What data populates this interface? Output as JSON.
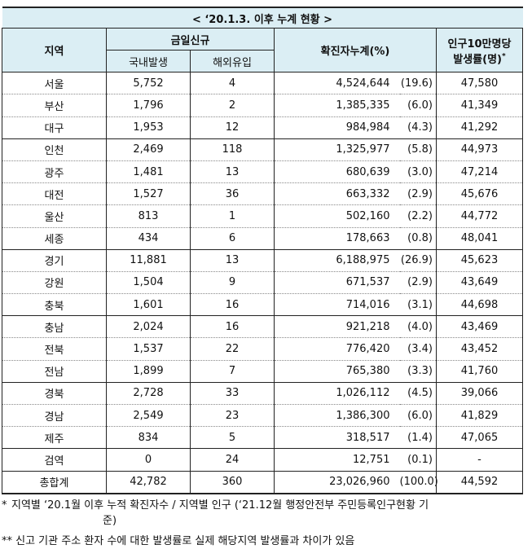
{
  "title": "< ‘20.1.3. 이후 누계 현황 >",
  "headers": {
    "region": "지역",
    "new_today": "금일신규",
    "domestic": "국내발생",
    "imported": "해외유입",
    "cumulative": "확진자누계(%)",
    "rate_line1": "인구10만명당",
    "rate_line2": "발생률(명)",
    "rate_mark": "*"
  },
  "rows": [
    {
      "region": "서울",
      "domestic": "5,752",
      "imported": "4",
      "cumulative": "4,524,644",
      "pct": "(19.6)",
      "rate": "47,580"
    },
    {
      "region": "부산",
      "domestic": "1,796",
      "imported": "2",
      "cumulative": "1,385,335",
      "pct": "(6.0)",
      "rate": "41,349"
    },
    {
      "region": "대구",
      "domestic": "1,953",
      "imported": "12",
      "cumulative": "984,984",
      "pct": "(4.3)",
      "rate": "41,292"
    },
    {
      "region": "인천",
      "domestic": "2,469",
      "imported": "118",
      "cumulative": "1,325,977",
      "pct": "(5.8)",
      "rate": "44,973"
    },
    {
      "region": "광주",
      "domestic": "1,481",
      "imported": "13",
      "cumulative": "680,639",
      "pct": "(3.0)",
      "rate": "47,214"
    },
    {
      "region": "대전",
      "domestic": "1,527",
      "imported": "36",
      "cumulative": "663,332",
      "pct": "(2.9)",
      "rate": "45,676"
    },
    {
      "region": "울산",
      "domestic": "813",
      "imported": "1",
      "cumulative": "502,160",
      "pct": "(2.2)",
      "rate": "44,772"
    },
    {
      "region": "세종",
      "domestic": "434",
      "imported": "6",
      "cumulative": "178,663",
      "pct": "(0.8)",
      "rate": "48,041"
    },
    {
      "region": "경기",
      "domestic": "11,881",
      "imported": "13",
      "cumulative": "6,188,975",
      "pct": "(26.9)",
      "rate": "45,623"
    },
    {
      "region": "강원",
      "domestic": "1,504",
      "imported": "9",
      "cumulative": "671,537",
      "pct": "(2.9)",
      "rate": "43,649"
    },
    {
      "region": "충북",
      "domestic": "1,601",
      "imported": "16",
      "cumulative": "714,016",
      "pct": "(3.1)",
      "rate": "44,698"
    },
    {
      "region": "충남",
      "domestic": "2,024",
      "imported": "16",
      "cumulative": "921,218",
      "pct": "(4.0)",
      "rate": "43,469"
    },
    {
      "region": "전북",
      "domestic": "1,537",
      "imported": "22",
      "cumulative": "776,420",
      "pct": "(3.4)",
      "rate": "43,452"
    },
    {
      "region": "전남",
      "domestic": "1,899",
      "imported": "7",
      "cumulative": "765,380",
      "pct": "(3.3)",
      "rate": "41,760"
    },
    {
      "region": "경북",
      "domestic": "2,728",
      "imported": "33",
      "cumulative": "1,026,112",
      "pct": "(4.5)",
      "rate": "39,066"
    },
    {
      "region": "경남",
      "domestic": "2,549",
      "imported": "23",
      "cumulative": "1,386,300",
      "pct": "(6.0)",
      "rate": "41,829"
    },
    {
      "region": "제주",
      "domestic": "834",
      "imported": "5",
      "cumulative": "318,517",
      "pct": "(1.4)",
      "rate": "47,065"
    },
    {
      "region": "검역",
      "domestic": "0",
      "imported": "24",
      "cumulative": "12,751",
      "pct": "(0.1)",
      "rate": "-"
    }
  ],
  "total": {
    "region": "총합계",
    "domestic": "42,782",
    "imported": "360",
    "cumulative": "23,026,960",
    "pct": "(100.0)",
    "rate": "44,592"
  },
  "notes": {
    "note1_mark": "*",
    "note1_line1": "지역별 ‘20.1월 이후 누적 확진자수 / 지역별 인구 (‘21.12월 행정안전부 주민등록인구현황 기",
    "note1_line2": "준)",
    "note2": "** 신고 기관 주소 환자 수에 대한 발생률로 실제 해당지역 발생률과 차이가 있음"
  },
  "colors": {
    "header_bg": "#dbeef4",
    "border": "#222222"
  }
}
